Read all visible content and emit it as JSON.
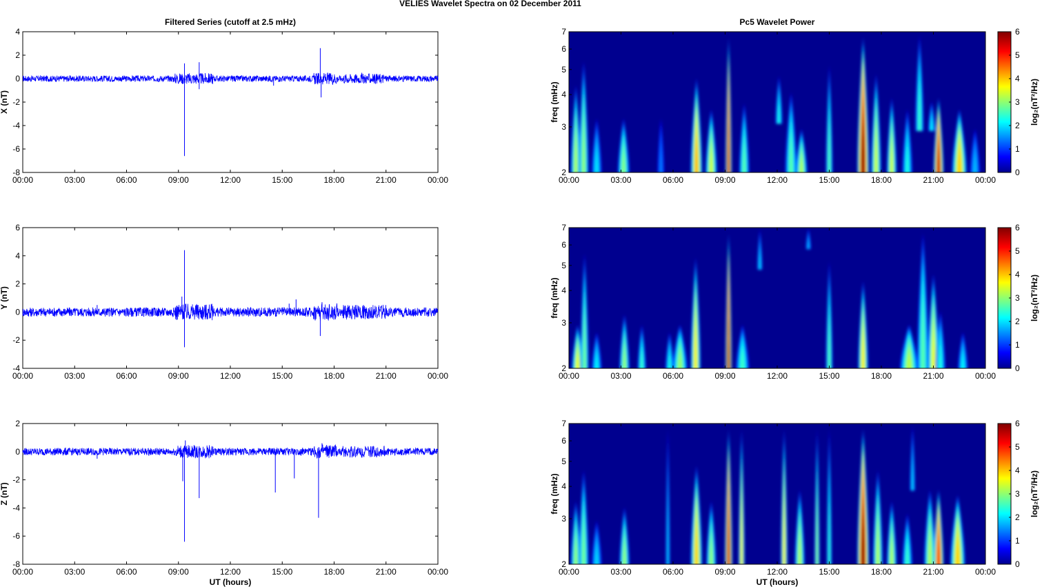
{
  "figure_title": "VELIES Wavelet Spectra on 02 December  2011",
  "left_title": "Filtered Series (cutoff at 2.5 mHz)",
  "right_title": "Pc5 Wavelet Power",
  "xlabel": "UT (hours)",
  "time_ticks": [
    "00:00",
    "03:00",
    "06:00",
    "09:00",
    "12:00",
    "15:00",
    "18:00",
    "21:00",
    "00:00"
  ],
  "freq_ylabel": "freq (mHz)",
  "colorbar_label": "log₂(nT²/Hz)",
  "colors": {
    "trace": "#0000ff",
    "spectrum_background": "#00008f"
  },
  "chart_data": [
    {
      "type": "line",
      "title": "Filtered Series (cutoff at 2.5 mHz)",
      "ylabel": "X (nT)",
      "xlabel": "",
      "xlim": [
        0,
        24
      ],
      "ylim": [
        -8,
        4
      ],
      "yticks": [
        4,
        2,
        0,
        -2,
        -4,
        -6,
        -8
      ],
      "noise_amplitude": 0.12,
      "spikes": [
        [
          9.35,
          -6.6
        ],
        [
          9.35,
          1.3
        ],
        [
          10.2,
          1.4
        ],
        [
          10.2,
          -0.9
        ],
        [
          17.2,
          2.6
        ],
        [
          17.25,
          -1.6
        ],
        [
          8.7,
          -0.3
        ],
        [
          14.5,
          -0.6
        ],
        [
          19.6,
          0.5
        ]
      ]
    },
    {
      "type": "line",
      "ylabel": "Y (nT)",
      "xlabel": "",
      "xlim": [
        0,
        24
      ],
      "ylim": [
        -4,
        6
      ],
      "yticks": [
        6,
        4,
        2,
        0,
        -2,
        -4
      ],
      "noise_amplitude": 0.15,
      "spikes": [
        [
          9.35,
          4.4
        ],
        [
          9.35,
          -2.5
        ],
        [
          9.2,
          1.1
        ],
        [
          4.3,
          0.5
        ],
        [
          15.4,
          0.6
        ],
        [
          15.8,
          0.9
        ],
        [
          17.2,
          -1.7
        ],
        [
          17.3,
          0.7
        ],
        [
          10.1,
          0.5
        ]
      ]
    },
    {
      "type": "line",
      "ylabel": "Z (nT)",
      "xlabel": "UT (hours)",
      "xlim": [
        0,
        24
      ],
      "ylim": [
        -8,
        2
      ],
      "yticks": [
        2,
        0,
        -2,
        -4,
        -6,
        -8
      ],
      "noise_amplitude": 0.12,
      "spikes": [
        [
          9.35,
          -6.4
        ],
        [
          9.25,
          -2.1
        ],
        [
          10.2,
          -3.3
        ],
        [
          14.6,
          -2.9
        ],
        [
          15.7,
          -1.9
        ],
        [
          17.1,
          -4.7
        ],
        [
          9.4,
          0.8
        ],
        [
          4.3,
          -0.5
        ],
        [
          17.3,
          0.6
        ]
      ]
    },
    {
      "type": "heatmap",
      "title": "Pc5 Wavelet Power",
      "ylabel": "freq (mHz)",
      "xlabel": "",
      "xlim": [
        0,
        24
      ],
      "ylim": [
        2,
        7
      ],
      "yscale": "log",
      "yticks": [
        7,
        6,
        5,
        4,
        3,
        2
      ],
      "colorbar": {
        "range": [
          0,
          6
        ],
        "ticks": [
          6,
          5,
          4,
          3,
          2,
          1,
          0
        ],
        "colormap": "jet",
        "label": "log₂(nT²/Hz)"
      },
      "blobs": [
        [
          0.4,
          2.0,
          4.5,
          3.0,
          0.3
        ],
        [
          0.85,
          2.0,
          5.6,
          2.8,
          0.3
        ],
        [
          1.6,
          2.0,
          3.3,
          1.7,
          0.3
        ],
        [
          3.15,
          2.0,
          3.3,
          2.7,
          0.35
        ],
        [
          5.3,
          2.0,
          3.3,
          1.0,
          0.2
        ],
        [
          7.35,
          2.0,
          4.8,
          4.0,
          0.35
        ],
        [
          8.2,
          2.0,
          3.6,
          3.2,
          0.35
        ],
        [
          9.2,
          2.0,
          7.0,
          5.6,
          0.18
        ],
        [
          10.1,
          2.0,
          3.8,
          2.4,
          0.3
        ],
        [
          12.1,
          3.2,
          4.8,
          2.0,
          0.2
        ],
        [
          12.8,
          2.0,
          4.2,
          2.4,
          0.35
        ],
        [
          13.4,
          2.0,
          3.0,
          3.0,
          0.35
        ],
        [
          15.0,
          2.0,
          5.4,
          2.4,
          0.2
        ],
        [
          16.95,
          2.0,
          7.0,
          6.0,
          0.35
        ],
        [
          17.7,
          2.0,
          5.0,
          3.2,
          0.3
        ],
        [
          18.6,
          2.0,
          4.0,
          3.2,
          0.3
        ],
        [
          19.5,
          2.0,
          3.6,
          2.0,
          0.3
        ],
        [
          20.2,
          3.0,
          7.0,
          2.2,
          0.25
        ],
        [
          21.3,
          2.0,
          4.0,
          5.6,
          0.3
        ],
        [
          22.5,
          2.0,
          3.6,
          3.8,
          0.45
        ],
        [
          20.9,
          3.0,
          3.8,
          1.8,
          0.2
        ],
        [
          23.4,
          2.0,
          3.0,
          1.4,
          0.3
        ]
      ]
    },
    {
      "type": "heatmap",
      "ylabel": "freq (mHz)",
      "xlabel": "",
      "xlim": [
        0,
        24
      ],
      "ylim": [
        2,
        7
      ],
      "yscale": "log",
      "yticks": [
        7,
        6,
        5,
        4,
        3,
        2
      ],
      "colorbar": {
        "range": [
          0,
          6
        ],
        "ticks": [
          6,
          5,
          4,
          3,
          2,
          1,
          0
        ],
        "colormap": "jet",
        "label": "log₂(nT²/Hz)"
      },
      "blobs": [
        [
          0.5,
          2.0,
          3.0,
          3.4,
          0.35
        ],
        [
          0.9,
          2.0,
          5.8,
          2.6,
          0.25
        ],
        [
          1.6,
          2.0,
          2.8,
          1.8,
          0.3
        ],
        [
          3.2,
          2.0,
          3.3,
          2.8,
          0.3
        ],
        [
          4.2,
          2.0,
          3.0,
          2.2,
          0.25
        ],
        [
          5.8,
          2.0,
          2.8,
          2.0,
          0.25
        ],
        [
          6.4,
          2.0,
          3.0,
          2.8,
          0.45
        ],
        [
          7.3,
          2.0,
          5.6,
          3.6,
          0.3
        ],
        [
          9.2,
          2.0,
          7.0,
          6.0,
          0.18
        ],
        [
          10.0,
          2.0,
          3.0,
          2.2,
          0.4
        ],
        [
          15.0,
          2.0,
          5.4,
          2.4,
          0.2
        ],
        [
          16.95,
          2.0,
          4.5,
          3.6,
          0.3
        ],
        [
          19.6,
          2.0,
          3.0,
          3.0,
          0.55
        ],
        [
          20.4,
          2.0,
          7.0,
          2.4,
          0.35
        ],
        [
          21.0,
          2.0,
          4.8,
          3.4,
          0.35
        ],
        [
          21.4,
          2.0,
          3.4,
          2.0,
          0.3
        ],
        [
          22.7,
          2.0,
          2.8,
          1.8,
          0.3
        ],
        [
          11.0,
          5.0,
          7.0,
          1.6,
          0.15
        ],
        [
          13.8,
          6.0,
          7.0,
          1.4,
          0.15
        ]
      ]
    },
    {
      "type": "heatmap",
      "ylabel": "freq (mHz)",
      "xlabel": "UT (hours)",
      "xlim": [
        0,
        24
      ],
      "ylim": [
        2,
        7
      ],
      "yscale": "log",
      "yticks": [
        7,
        6,
        5,
        4,
        3,
        2
      ],
      "colorbar": {
        "range": [
          0,
          6
        ],
        "ticks": [
          6,
          5,
          4,
          3,
          2,
          1,
          0
        ],
        "colormap": "jet",
        "label": "log₂(nT²/Hz)"
      },
      "blobs": [
        [
          0.4,
          2.0,
          3.6,
          2.8,
          0.3
        ],
        [
          0.85,
          2.0,
          4.8,
          2.6,
          0.3
        ],
        [
          1.6,
          2.0,
          3.0,
          1.6,
          0.3
        ],
        [
          3.2,
          2.0,
          3.4,
          2.8,
          0.3
        ],
        [
          5.7,
          2.0,
          7.0,
          1.6,
          0.12
        ],
        [
          7.35,
          2.0,
          5.0,
          3.8,
          0.35
        ],
        [
          8.2,
          2.0,
          3.6,
          2.8,
          0.3
        ],
        [
          9.2,
          2.0,
          7.0,
          5.6,
          0.22
        ],
        [
          9.95,
          2.0,
          7.0,
          3.6,
          0.18
        ],
        [
          12.4,
          2.0,
          7.0,
          3.6,
          0.2
        ],
        [
          13.3,
          2.0,
          4.0,
          3.0,
          0.3
        ],
        [
          14.3,
          2.0,
          7.0,
          2.8,
          0.15
        ],
        [
          15.0,
          2.0,
          7.0,
          2.2,
          0.15
        ],
        [
          16.95,
          2.0,
          7.0,
          6.0,
          0.35
        ],
        [
          17.8,
          2.0,
          4.8,
          3.0,
          0.3
        ],
        [
          18.6,
          2.0,
          3.6,
          3.0,
          0.3
        ],
        [
          19.5,
          2.0,
          3.2,
          2.2,
          0.3
        ],
        [
          20.8,
          2.0,
          4.0,
          3.0,
          0.35
        ],
        [
          21.3,
          2.0,
          4.0,
          5.2,
          0.3
        ],
        [
          22.4,
          2.0,
          3.8,
          3.8,
          0.45
        ],
        [
          19.8,
          4.0,
          7.0,
          1.6,
          0.15
        ]
      ]
    }
  ]
}
